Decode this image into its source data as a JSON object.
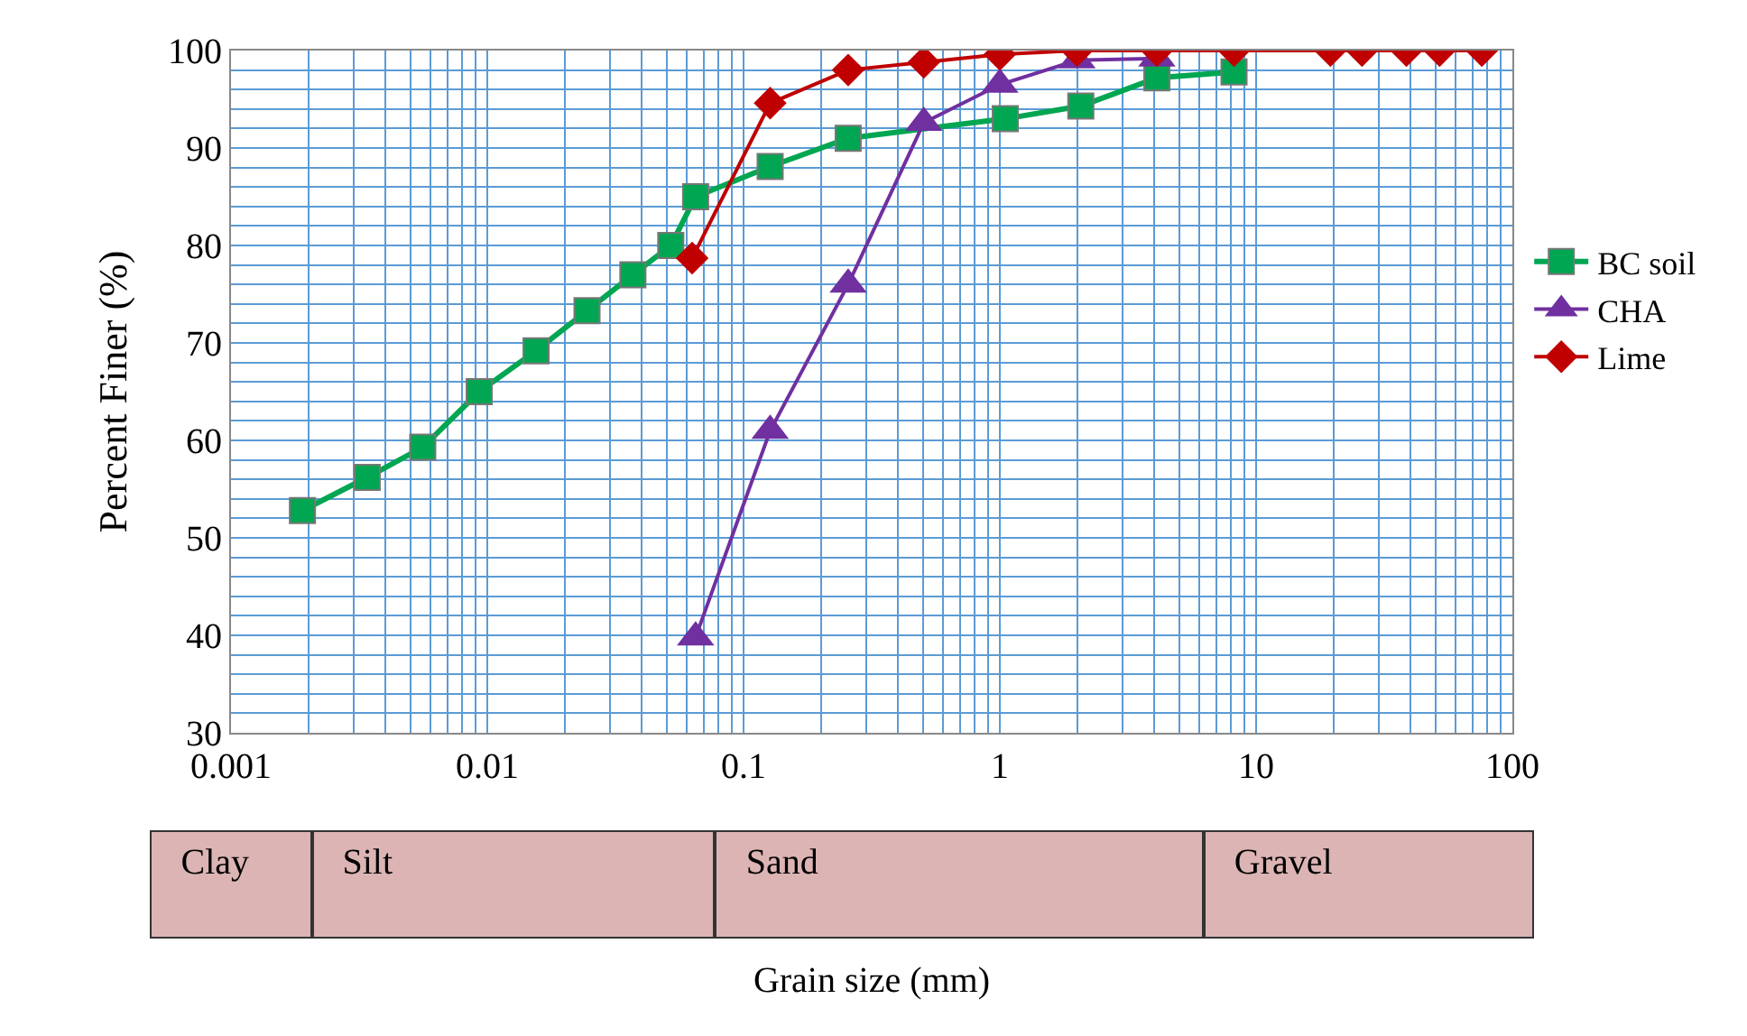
{
  "chart_data": {
    "type": "line",
    "xlabel": "Grain size (mm)",
    "ylabel": "Percent Finer (%)",
    "log": "x",
    "xlim": [
      0.001,
      100
    ],
    "xticks": [
      0.001,
      0.01,
      0.1,
      1,
      10,
      100
    ],
    "ylim": [
      30,
      100
    ],
    "yticks": [
      30,
      {
        "value": 32,
        "label": null
      },
      {
        "value": 34,
        "label": null
      },
      {
        "value": 36,
        "label": null
      },
      {
        "value": 38,
        "label": null
      },
      40,
      {
        "value": 42,
        "label": null
      },
      {
        "value": 44,
        "label": null
      },
      {
        "value": 46,
        "label": null
      },
      {
        "value": 48,
        "label": null
      },
      50,
      {
        "value": 52,
        "label": null
      },
      {
        "value": 54,
        "label": null
      },
      {
        "value": 56,
        "label": null
      },
      {
        "value": 58,
        "label": null
      },
      60,
      {
        "value": 62,
        "label": null
      },
      {
        "value": 64,
        "label": null
      },
      {
        "value": 66,
        "label": null
      },
      {
        "value": 68,
        "label": null
      },
      70,
      {
        "value": 72,
        "label": null
      },
      {
        "value": 74,
        "label": null
      },
      {
        "value": 76,
        "label": null
      },
      {
        "value": 78,
        "label": null
      },
      80,
      {
        "value": 82,
        "label": null
      },
      {
        "value": 84,
        "label": null
      },
      {
        "value": 86,
        "label": null
      },
      {
        "value": 88,
        "label": null
      },
      90,
      {
        "value": 92,
        "label": null
      },
      {
        "value": 94,
        "label": null
      },
      {
        "value": 96,
        "label": null
      },
      {
        "value": 98,
        "label": null
      },
      100
    ],
    "grid": true,
    "legend": "right",
    "series": [
      {
        "name": "BC soil",
        "color": "#00a651",
        "marker": "square",
        "x": [
          0.0019,
          0.0034,
          0.0056,
          0.0093,
          0.0155,
          0.0245,
          0.037,
          0.052,
          0.065,
          0.127,
          0.256,
          1.05,
          2.07,
          4.1,
          8.2
        ],
        "values": [
          52.8,
          56.2,
          59.3,
          65,
          69.2,
          73.3,
          77,
          80,
          85,
          88.1,
          91,
          93,
          94.3,
          97.2,
          97.8
        ]
      },
      {
        "name": "CHA",
        "color": "#7030a0",
        "marker": "triangle",
        "x": [
          0.065,
          0.127,
          0.256,
          0.505,
          1.0,
          2.0,
          4.1
        ],
        "values": [
          39.8,
          61,
          76,
          92.6,
          96.5,
          99,
          99.2
        ]
      },
      {
        "name": "Lime",
        "color": "#c00000",
        "marker": "diamond",
        "x": [
          0.063,
          0.127,
          0.256,
          0.505,
          1.0,
          2.0,
          4.1,
          8.2,
          19.5,
          25.9,
          38.6,
          52,
          76
        ],
        "values": [
          78.7,
          94.6,
          98,
          98.8,
          99.6,
          100,
          100,
          100,
          100,
          100,
          100,
          100,
          100
        ]
      }
    ],
    "annotations": [
      "Clay",
      "Silt",
      "Sand",
      "Gravel"
    ]
  }
}
